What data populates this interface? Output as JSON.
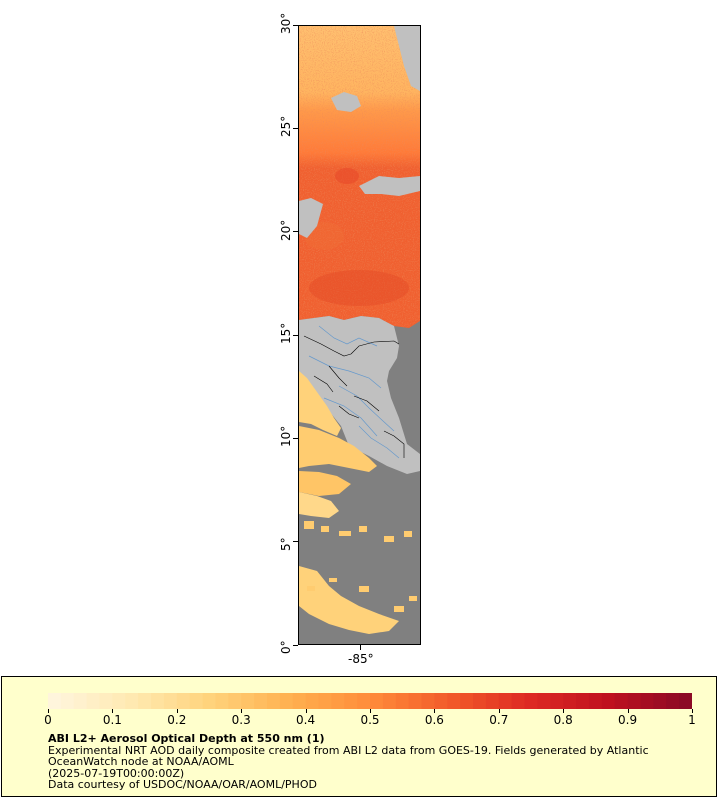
{
  "map": {
    "y_axis_labels": [
      "0°",
      "5°",
      "10°",
      "15°",
      "20°",
      "25°",
      "30°"
    ],
    "x_axis_labels": [
      "-85°"
    ],
    "colors": {
      "land": "#c0c0c0",
      "no_data": "#808080",
      "border": "#000000",
      "river": "#6699cc"
    }
  },
  "legend": {
    "scale_labels": [
      "0",
      "0.1",
      "0.2",
      "0.3",
      "0.4",
      "0.5",
      "0.6",
      "0.7",
      "0.8",
      "0.9",
      "1"
    ],
    "title": "ABI L2+ Aerosol Optical Depth at 550 nm (1)",
    "lines": [
      "Experimental NRT AOD daily composite created from ABI L2 data from GOES-19. Fields generated by Atlantic OceanWatch node at NOAA/AOML",
      "(2025-07-19T00:00:00Z)",
      "Data courtesy of USDOC/NOAA/OAR/AOML/PHOD"
    ],
    "colormap": [
      "#fff5dc",
      "#ffe9b0",
      "#ffd27a",
      "#ffb04f",
      "#ff8c3a",
      "#f25b2a",
      "#de2a23",
      "#c0111f",
      "#8c0a25"
    ]
  }
}
